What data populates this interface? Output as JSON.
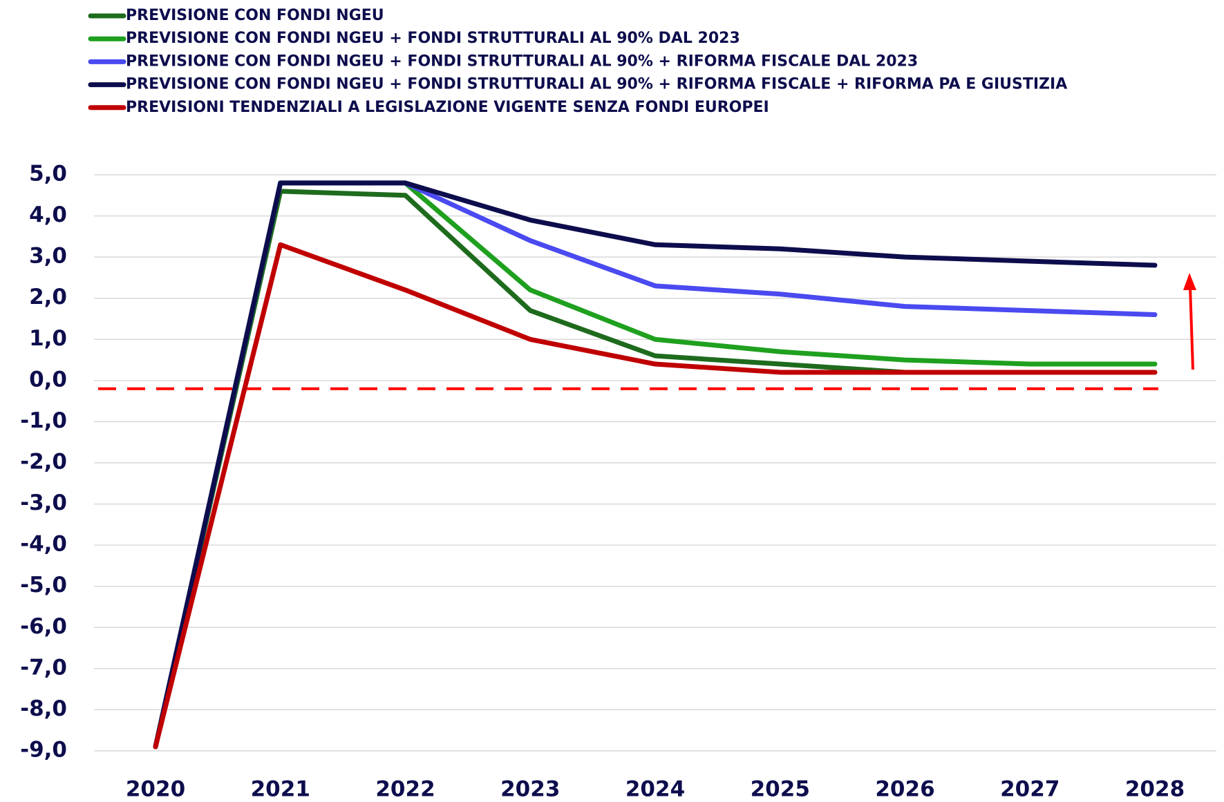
{
  "chart_data": {
    "type": "line",
    "categories": [
      "2020",
      "2021",
      "2022",
      "2023",
      "2024",
      "2025",
      "2026",
      "2027",
      "2028"
    ],
    "series": [
      {
        "name": "PREVISIONE CON FONDI NGEU",
        "color": "#1e6b1e",
        "values": [
          -8.9,
          4.6,
          4.5,
          1.7,
          0.6,
          0.4,
          0.2,
          0.2,
          0.2
        ]
      },
      {
        "name": "PREVISIONE CON FONDI NGEU + FONDI STRUTTURALI AL 90% DAL 2023",
        "color": "#1fa01f",
        "values": [
          -8.9,
          4.8,
          4.8,
          2.2,
          1.0,
          0.7,
          0.5,
          0.4,
          0.4
        ]
      },
      {
        "name": "PREVISIONE CON FONDI NGEU + FONDI STRUTTURALI AL 90% + RIFORMA FISCALE DAL 2023",
        "color": "#4a4af0",
        "values": [
          -8.9,
          4.8,
          4.8,
          3.4,
          2.3,
          2.1,
          1.8,
          1.7,
          1.6
        ]
      },
      {
        "name": "PREVISIONE CON FONDI NGEU + FONDI STRUTTURALI AL 90% + RIFORMA FISCALE + RIFORMA PA E GIUSTIZIA",
        "color": "#0d0d4d",
        "values": [
          -8.9,
          4.8,
          4.8,
          3.9,
          3.3,
          3.2,
          3.0,
          2.9,
          2.8
        ]
      },
      {
        "name": "PREVISIONI TENDENZIALI A LEGISLAZIONE VIGENTE SENZA FONDI EUROPEI",
        "color": "#c00000",
        "values": [
          -8.9,
          3.3,
          2.2,
          1.0,
          0.4,
          0.2,
          0.2,
          0.2,
          0.2
        ]
      }
    ],
    "reference_line": {
      "value": -0.2,
      "color": "#ff0000"
    },
    "ylim": [
      -9,
      5
    ],
    "yticks": [
      {
        "value": 5,
        "label": "5,0"
      },
      {
        "value": 4,
        "label": "4,0"
      },
      {
        "value": 3,
        "label": "3,0"
      },
      {
        "value": 2,
        "label": "2,0"
      },
      {
        "value": 1,
        "label": "1,0"
      },
      {
        "value": 0,
        "label": "0,0"
      },
      {
        "value": -1,
        "label": "-1,0"
      },
      {
        "value": -2,
        "label": "-2,0"
      },
      {
        "value": -3,
        "label": "-3,0"
      },
      {
        "value": -4,
        "label": "-4,0"
      },
      {
        "value": -5,
        "label": "-5,0"
      },
      {
        "value": -6,
        "label": "-6,0"
      },
      {
        "value": -7,
        "label": "-7,0"
      },
      {
        "value": -8,
        "label": "-8,0"
      },
      {
        "value": -9,
        "label": "-9,0"
      }
    ],
    "grid": true
  }
}
